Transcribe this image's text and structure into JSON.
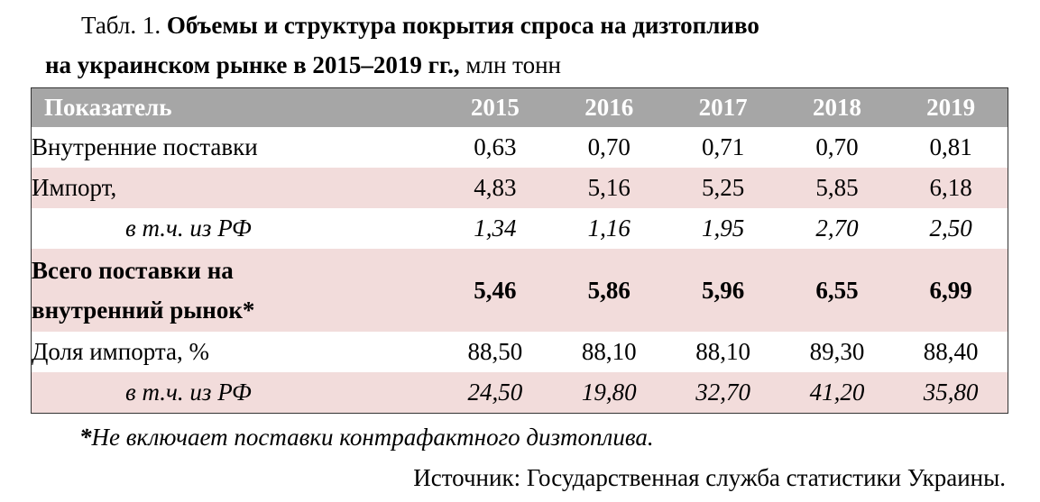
{
  "caption": {
    "prefix": "Табл. 1.",
    "title_line1": "Объемы и структура покрытия спроса на дизтопливо",
    "title_line2": "на украинском рынке в 2015–2019 гг.,",
    "units": "млн тонн"
  },
  "table": {
    "header": {
      "label": "Показатель",
      "years": [
        "2015",
        "2016",
        "2017",
        "2018",
        "2019"
      ]
    },
    "rows": [
      {
        "label": "Внутренние поставки",
        "values": [
          "0,63",
          "0,70",
          "0,71",
          "0,70",
          "0,81"
        ]
      },
      {
        "label": "Импорт,",
        "values": [
          "4,83",
          "5,16",
          "5,25",
          "5,85",
          "6,18"
        ]
      },
      {
        "label": "в т.ч. из РФ",
        "values": [
          "1,34",
          "1,16",
          "1,95",
          "2,70",
          "2,50"
        ]
      },
      {
        "label_line1": "Всего поставки на",
        "label_line2": "внутренний рынок*",
        "values": [
          "5,46",
          "5,86",
          "5,96",
          "6,55",
          "6,99"
        ]
      },
      {
        "label": "Доля импорта, %",
        "values": [
          "88,50",
          "88,10",
          "88,10",
          "89,30",
          "88,40"
        ]
      },
      {
        "label": "в т.ч. из РФ",
        "values": [
          "24,50",
          "19,80",
          "32,70",
          "41,20",
          "35,80"
        ]
      }
    ]
  },
  "footnote": {
    "mark": "*",
    "text": "Не включает поставки контрафактного дизтоплива."
  },
  "source": "Источник: Государственная служба статистики Украины."
}
